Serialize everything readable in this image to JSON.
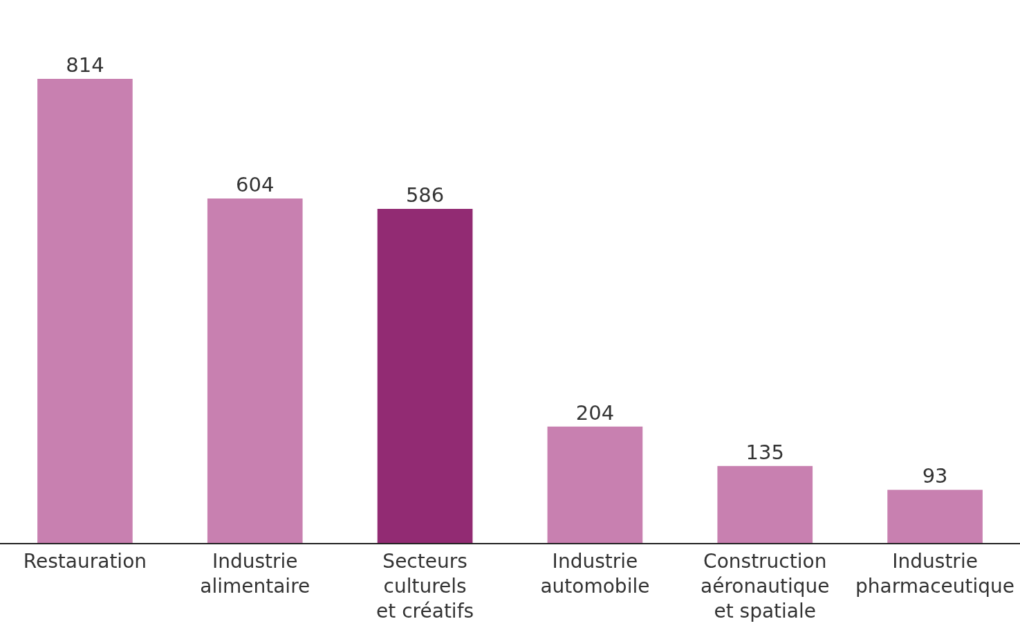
{
  "chart_data": {
    "type": "bar",
    "categories": [
      "Restauration",
      "Industrie\nalimentaire",
      "Secteurs\nculturels\net créatifs",
      "Industrie\nautomobile",
      "Construction\naéronautique\net spatiale",
      "Industrie\npharmaceutique"
    ],
    "values": [
      814,
      604,
      586,
      204,
      135,
      93
    ],
    "colors": [
      "#c880b0",
      "#c880b0",
      "#922b73",
      "#c880b0",
      "#c880b0",
      "#c880b0"
    ],
    "data_labels": true
  }
}
